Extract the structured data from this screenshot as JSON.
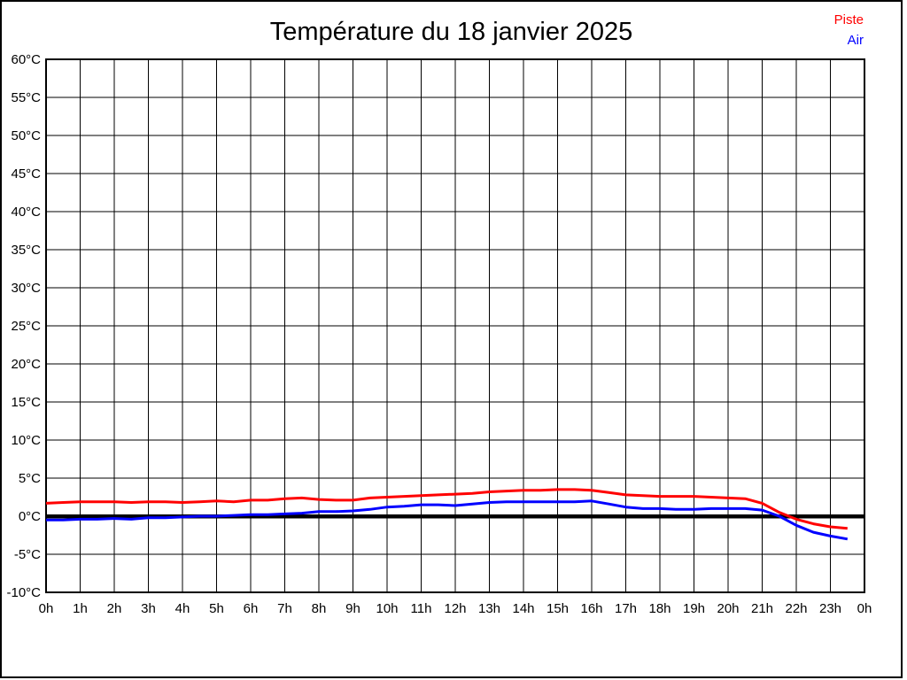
{
  "chart": {
    "title": "Température du 18 janvier 2025",
    "legend": [
      {
        "label": "Piste",
        "color": "#ff0000"
      },
      {
        "label": "Air",
        "color": "#0000ff"
      }
    ]
  },
  "chart_data": {
    "type": "line",
    "title": "Température du 18 janvier 2025",
    "xlabel": "",
    "ylabel": "",
    "xlim": [
      0,
      24
    ],
    "ylim": [
      -10,
      60
    ],
    "grid": true,
    "x_tick_step_hours": 1,
    "y_tick_step_degrees": 5,
    "x_tick_labels": [
      "0h",
      "1h",
      "2h",
      "3h",
      "4h",
      "5h",
      "6h",
      "7h",
      "8h",
      "9h",
      "10h",
      "11h",
      "12h",
      "13h",
      "14h",
      "15h",
      "16h",
      "17h",
      "18h",
      "19h",
      "20h",
      "21h",
      "22h",
      "23h",
      "0h"
    ],
    "y_tick_labels": [
      "60°C",
      "55°C",
      "50°C",
      "45°C",
      "40°C",
      "35°C",
      "30°C",
      "25°C",
      "20°C",
      "15°C",
      "10°C",
      "5°C",
      "0°C",
      "-5°C",
      "-10°C"
    ],
    "zero_line_value": 0,
    "x": [
      0,
      0.5,
      1,
      1.5,
      2,
      2.5,
      3,
      3.5,
      4,
      4.5,
      5,
      5.5,
      6,
      6.5,
      7,
      7.5,
      8,
      8.5,
      9,
      9.5,
      10,
      10.5,
      11,
      11.5,
      12,
      12.5,
      13,
      13.5,
      14,
      14.5,
      15,
      15.5,
      16,
      16.5,
      17,
      17.5,
      18,
      18.5,
      19,
      19.5,
      20,
      20.5,
      21,
      21.5,
      22,
      22.5,
      23,
      23.5
    ],
    "series": [
      {
        "name": "Piste",
        "color": "#ff0000",
        "values": [
          1.7,
          1.8,
          1.9,
          1.9,
          1.9,
          1.8,
          1.9,
          1.9,
          1.8,
          1.9,
          2.0,
          1.9,
          2.1,
          2.1,
          2.3,
          2.4,
          2.2,
          2.1,
          2.1,
          2.4,
          2.5,
          2.6,
          2.7,
          2.8,
          2.9,
          3.0,
          3.2,
          3.3,
          3.4,
          3.4,
          3.5,
          3.5,
          3.4,
          3.1,
          2.8,
          2.7,
          2.6,
          2.6,
          2.6,
          2.5,
          2.4,
          2.3,
          1.7,
          0.5,
          -0.4,
          -1.0,
          -1.4,
          -1.6
        ]
      },
      {
        "name": "Air",
        "color": "#0000ff",
        "values": [
          -0.5,
          -0.5,
          -0.4,
          -0.4,
          -0.3,
          -0.4,
          -0.2,
          -0.2,
          -0.1,
          0.0,
          0.0,
          0.1,
          0.2,
          0.2,
          0.3,
          0.4,
          0.6,
          0.6,
          0.7,
          0.9,
          1.2,
          1.3,
          1.5,
          1.5,
          1.4,
          1.6,
          1.8,
          1.9,
          1.9,
          1.9,
          1.9,
          1.9,
          2.0,
          1.6,
          1.2,
          1.0,
          1.0,
          0.9,
          0.9,
          1.0,
          1.0,
          1.0,
          0.8,
          0.0,
          -1.2,
          -2.1,
          -2.6,
          -3.0
        ]
      }
    ]
  }
}
